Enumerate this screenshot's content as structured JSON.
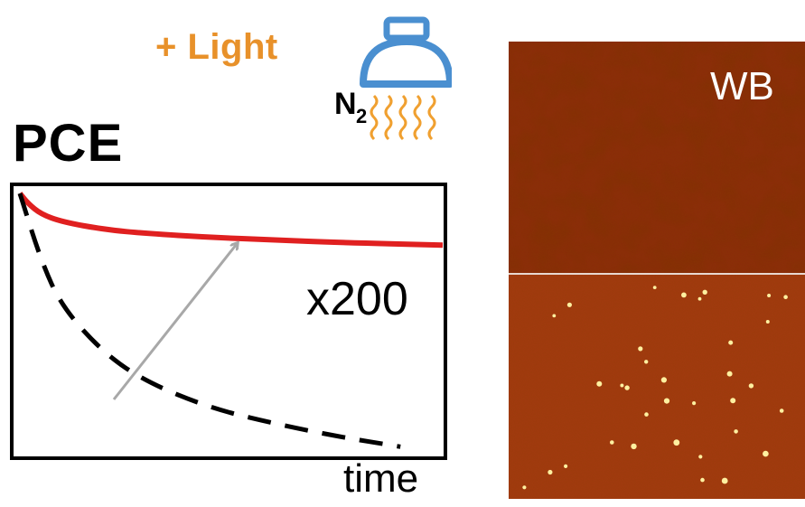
{
  "annotation": {
    "light_text": "+ Light",
    "gas_text": "N",
    "gas_subscript": "2",
    "colors": {
      "light": "#e8912a",
      "lamp": "#4a8fd0",
      "heat_waves": "#f0a030"
    }
  },
  "chart_data": {
    "type": "line",
    "title": "PCE",
    "xlabel": "time",
    "ylabel": "",
    "annotation": "x200",
    "series": [
      {
        "style": "solid",
        "color": "#e02020",
        "x": [
          0,
          0.02,
          0.05,
          0.1,
          0.2,
          0.3,
          0.45,
          0.6,
          0.75,
          1.0
        ],
        "y": [
          1.0,
          0.96,
          0.92,
          0.89,
          0.86,
          0.845,
          0.83,
          0.82,
          0.81,
          0.8
        ]
      },
      {
        "style": "dashed",
        "color": "#000000",
        "x": [
          0,
          0.05,
          0.1,
          0.2,
          0.3,
          0.45,
          0.6,
          0.75,
          0.9
        ],
        "y": [
          1.0,
          0.74,
          0.56,
          0.38,
          0.27,
          0.17,
          0.11,
          0.06,
          0.02
        ]
      }
    ],
    "arrow_color": "#a8a8a8"
  },
  "image_panel": {
    "label": "WB",
    "colors": {
      "top": "#8a2a0a",
      "bottom": "#a33a10",
      "divider": "#e8d8d0",
      "dots": "#fff0a0"
    }
  }
}
